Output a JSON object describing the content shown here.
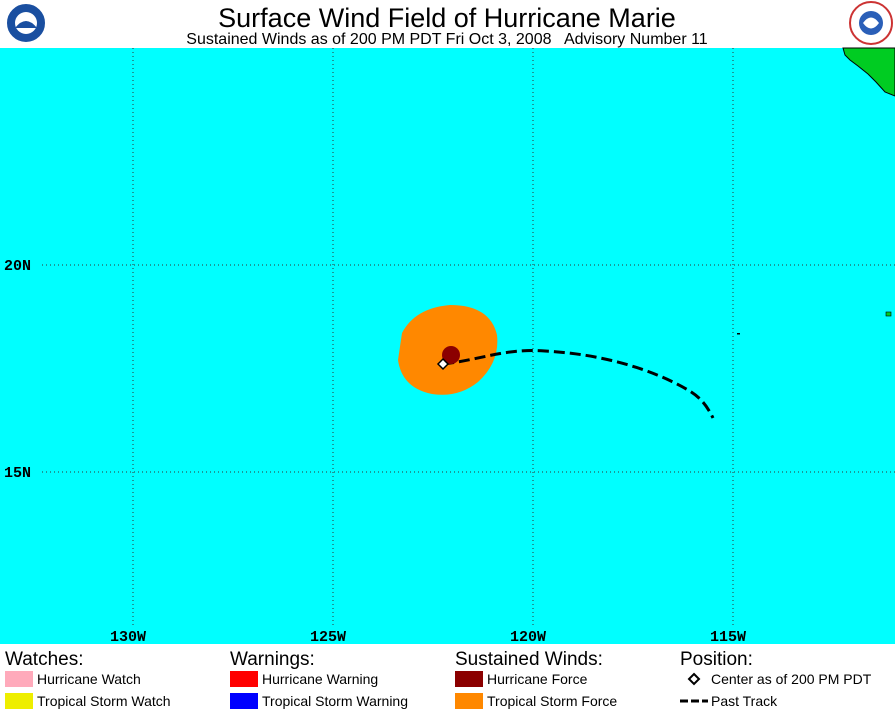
{
  "header": {
    "title": "Surface Wind Field of Hurricane Marie",
    "subtitle": "Sustained Winds as of 200 PM PDT Fri Oct 3, 2008   Advisory Number 11"
  },
  "map": {
    "lat_labels": [
      "20N",
      "15N"
    ],
    "lon_labels": [
      "130W",
      "125W",
      "120W",
      "115W"
    ]
  },
  "legend": {
    "watches": {
      "title": "Watches:",
      "items": [
        "Hurricane Watch",
        "Tropical Storm Watch"
      ]
    },
    "warnings": {
      "title": "Warnings:",
      "items": [
        "Hurricane Warning",
        "Tropical Storm Warning"
      ]
    },
    "winds": {
      "title": "Sustained Winds:",
      "items": [
        "Hurricane Force",
        "Tropical Storm Force"
      ]
    },
    "position": {
      "title": "Position:",
      "items": [
        "Center as of 200 PM PDT",
        "Past Track"
      ]
    }
  }
}
